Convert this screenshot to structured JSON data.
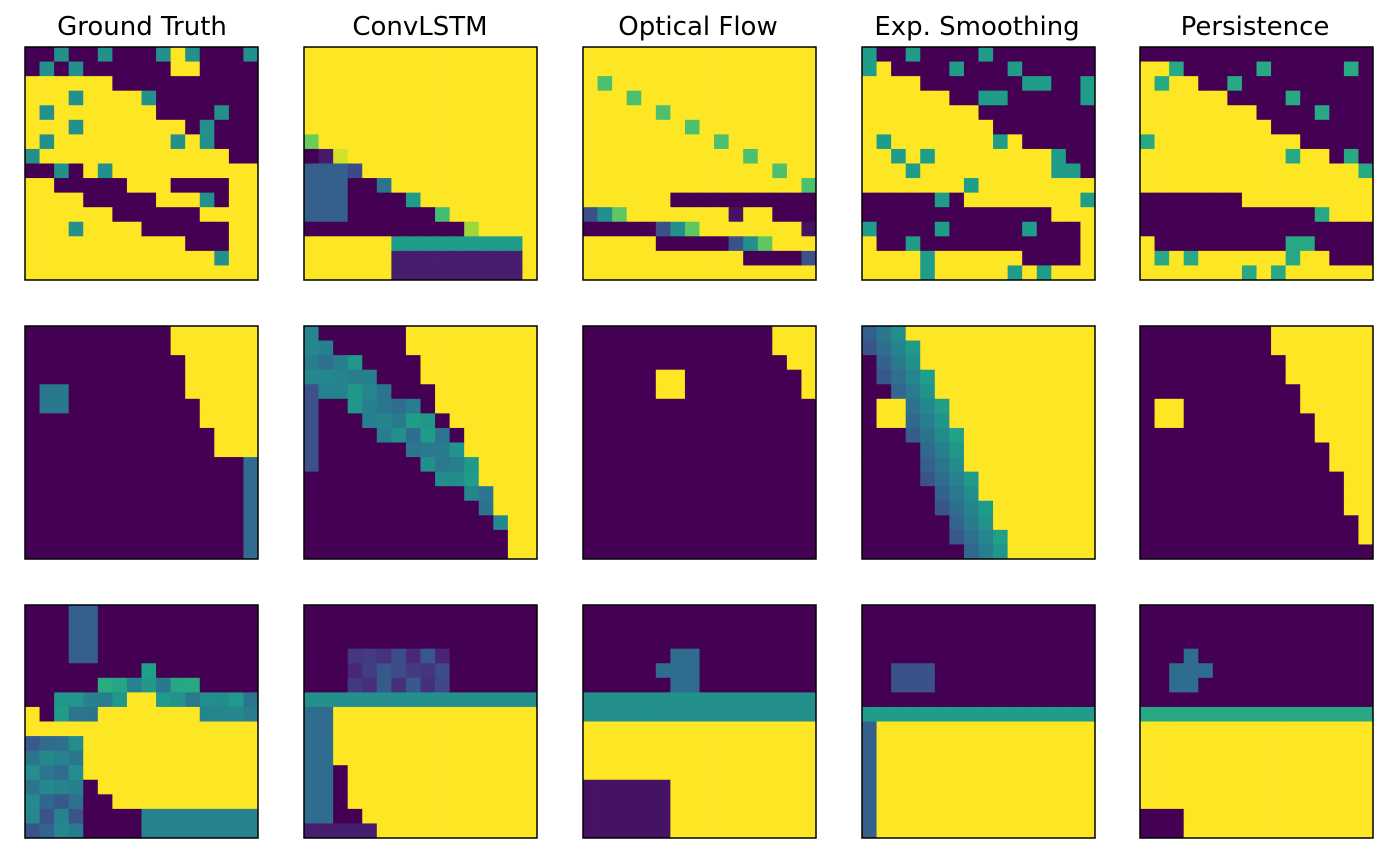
{
  "figure": {
    "column_titles": [
      "Ground Truth",
      "ConvLSTM",
      "Optical Flow",
      "Exp. Smoothing",
      "Persistence"
    ]
  },
  "colors": {
    "viridis_low": "#440154",
    "viridis_mid": "#21918c",
    "viridis_high": "#fde725",
    "axes_frame": "#000000"
  },
  "chart_data": {
    "type": "heatmap",
    "rows": 3,
    "columns": 5,
    "grid_size": 16,
    "colormap": "viridis",
    "value_range": [
      0,
      1
    ],
    "ticks": "none",
    "panels": [
      {
        "row": 0,
        "col": 0,
        "title": "Ground Truth"
      },
      {
        "row": 0,
        "col": 1,
        "title": "ConvLSTM"
      },
      {
        "row": 0,
        "col": 2,
        "title": "Optical Flow"
      },
      {
        "row": 0,
        "col": 3,
        "title": "Exp. Smoothing"
      },
      {
        "row": 0,
        "col": 4,
        "title": "Persistence"
      },
      {
        "row": 1,
        "col": 0
      },
      {
        "row": 1,
        "col": 1
      },
      {
        "row": 1,
        "col": 2
      },
      {
        "row": 1,
        "col": 3
      },
      {
        "row": 1,
        "col": 4
      },
      {
        "row": 2,
        "col": 0
      },
      {
        "row": 2,
        "col": 1
      },
      {
        "row": 2,
        "col": 2
      },
      {
        "row": 2,
        "col": 3
      },
      {
        "row": 2,
        "col": 4
      }
    ]
  }
}
